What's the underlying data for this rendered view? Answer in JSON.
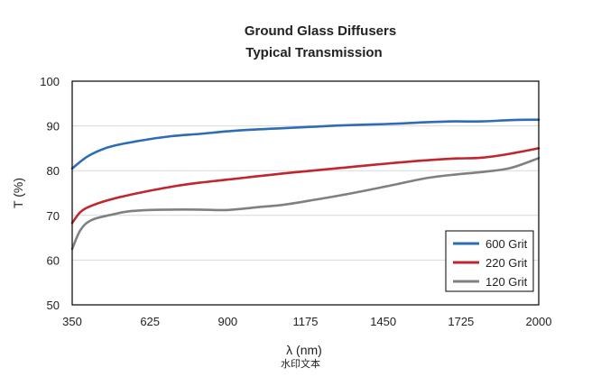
{
  "chart_data": {
    "type": "line",
    "title": "Ground Glass Diffusers",
    "subtitle": "Typical Transmission",
    "xlabel": "λ (nm)",
    "ylabel": "T (%)",
    "xlim": [
      350,
      2000
    ],
    "ylim": [
      50,
      100
    ],
    "x_ticks": [
      350,
      625,
      900,
      1175,
      1450,
      1725,
      2000
    ],
    "y_ticks": [
      50,
      60,
      70,
      80,
      90,
      100
    ],
    "grid": true,
    "legend_position": "bottom-right",
    "series": [
      {
        "name": "600 Grit",
        "color": "#2e6db4",
        "points": [
          [
            350,
            80.5
          ],
          [
            400,
            83
          ],
          [
            450,
            84.6
          ],
          [
            500,
            85.6
          ],
          [
            600,
            86.8
          ],
          [
            700,
            87.7
          ],
          [
            800,
            88.2
          ],
          [
            900,
            88.8
          ],
          [
            1000,
            89.2
          ],
          [
            1100,
            89.5
          ],
          [
            1200,
            89.8
          ],
          [
            1300,
            90.1
          ],
          [
            1400,
            90.3
          ],
          [
            1500,
            90.5
          ],
          [
            1600,
            90.8
          ],
          [
            1700,
            91.0
          ],
          [
            1800,
            91.0
          ],
          [
            1900,
            91.3
          ],
          [
            2000,
            91.4
          ]
        ]
      },
      {
        "name": "220 Grit",
        "color": "#c0262c",
        "points": [
          [
            350,
            68.3
          ],
          [
            380,
            70.8
          ],
          [
            420,
            72.2
          ],
          [
            500,
            73.8
          ],
          [
            600,
            75.2
          ],
          [
            700,
            76.4
          ],
          [
            800,
            77.3
          ],
          [
            900,
            78.0
          ],
          [
            1000,
            78.7
          ],
          [
            1100,
            79.4
          ],
          [
            1200,
            80.0
          ],
          [
            1300,
            80.6
          ],
          [
            1400,
            81.2
          ],
          [
            1500,
            81.8
          ],
          [
            1600,
            82.3
          ],
          [
            1700,
            82.7
          ],
          [
            1800,
            82.9
          ],
          [
            1900,
            83.8
          ],
          [
            2000,
            85.0
          ]
        ]
      },
      {
        "name": "120 Grit",
        "color": "#808080",
        "points": [
          [
            350,
            62.5
          ],
          [
            380,
            66.8
          ],
          [
            420,
            69.0
          ],
          [
            500,
            70.3
          ],
          [
            550,
            70.9
          ],
          [
            625,
            71.2
          ],
          [
            700,
            71.3
          ],
          [
            800,
            71.3
          ],
          [
            900,
            71.2
          ],
          [
            1000,
            71.8
          ],
          [
            1100,
            72.4
          ],
          [
            1200,
            73.4
          ],
          [
            1300,
            74.5
          ],
          [
            1400,
            75.7
          ],
          [
            1500,
            77.0
          ],
          [
            1600,
            78.3
          ],
          [
            1700,
            79.1
          ],
          [
            1800,
            79.7
          ],
          [
            1900,
            80.6
          ],
          [
            2000,
            82.8
          ]
        ]
      }
    ]
  },
  "watermark": "水印文本"
}
